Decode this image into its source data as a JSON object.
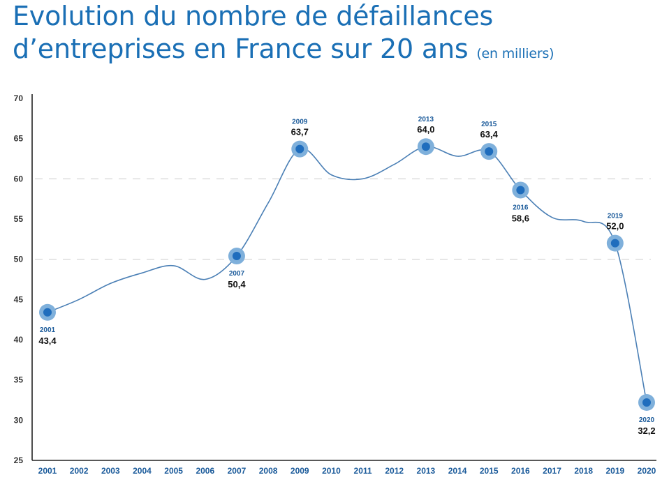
{
  "title": {
    "line1": "Evolution du nombre de défaillances",
    "line2": "d’entreprises en France sur 20 ans",
    "unit": "(en milliers)"
  },
  "colors": {
    "title": "#1a6fb5",
    "line": "#4a7fb5",
    "marker_outer": "#7fb0db",
    "marker_inner": "#1f6dbd",
    "grid": "#cccccc"
  },
  "chart_data": {
    "type": "line",
    "title": "Evolution du nombre de défaillances d’entreprises en France sur 20 ans (en milliers)",
    "x": [
      "2001",
      "2002",
      "2003",
      "2004",
      "2005",
      "2006",
      "2007",
      "2008",
      "2009",
      "2010",
      "2011",
      "2012",
      "2013",
      "2014",
      "2015",
      "2016",
      "2017",
      "2018",
      "2019",
      "2020"
    ],
    "series": [
      {
        "values": [
          43.4,
          45.0,
          47.0,
          48.3,
          49.2,
          47.5,
          50.4,
          57.0,
          63.7,
          60.5,
          60.0,
          61.8,
          64.0,
          62.8,
          63.4,
          58.6,
          55.2,
          54.7,
          52.0,
          32.2
        ]
      }
    ],
    "ylim": [
      25,
      70
    ],
    "yticks": [
      25,
      30,
      35,
      40,
      45,
      50,
      55,
      60,
      65,
      70
    ],
    "grid": "dashed horizontal at 50 and 60",
    "highlights": [
      {
        "year": "2001",
        "label": "43,4",
        "position": "below"
      },
      {
        "year": "2007",
        "label": "50,4",
        "position": "below"
      },
      {
        "year": "2009",
        "label": "63,7",
        "position": "above"
      },
      {
        "year": "2013",
        "label": "64,0",
        "position": "above"
      },
      {
        "year": "2015",
        "label": "63,4",
        "position": "above"
      },
      {
        "year": "2016",
        "label": "58,6",
        "position": "below"
      },
      {
        "year": "2019",
        "label": "52,0",
        "position": "above"
      },
      {
        "year": "2020",
        "label": "32,2",
        "position": "below"
      }
    ]
  }
}
